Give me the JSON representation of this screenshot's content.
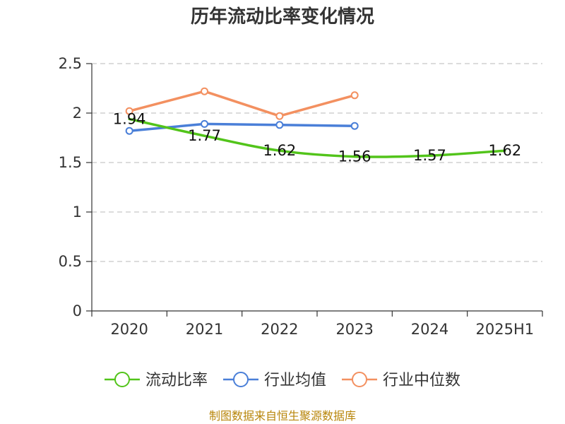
{
  "chart_data": {
    "type": "line",
    "title": "历年流动比率变化情况",
    "categories": [
      "2020",
      "2021",
      "2022",
      "2023",
      "2024",
      "2025H1"
    ],
    "y_ticks": [
      "0",
      "0.5",
      "1",
      "1.5",
      "2",
      "2.5"
    ],
    "ylim": [
      0,
      2.5
    ],
    "grid": true,
    "legend_position": "bottom",
    "series": [
      {
        "name": "流动比率",
        "color": "#52c41a",
        "values": [
          1.94,
          1.77,
          1.62,
          1.56,
          1.57,
          1.62
        ],
        "data_labels": [
          "1.94",
          "1.77",
          "1.62",
          "1.56",
          "1.57",
          "1.62"
        ],
        "markers": false
      },
      {
        "name": "行业均值",
        "color": "#4a7fd8",
        "values": [
          1.82,
          1.89,
          1.88,
          1.87,
          null,
          null
        ],
        "markers": true
      },
      {
        "name": "行业中位数",
        "color": "#f39060",
        "values": [
          2.02,
          2.22,
          1.97,
          2.18,
          null,
          null
        ],
        "markers": true
      }
    ]
  },
  "source": "制图数据来自恒生聚源数据库"
}
